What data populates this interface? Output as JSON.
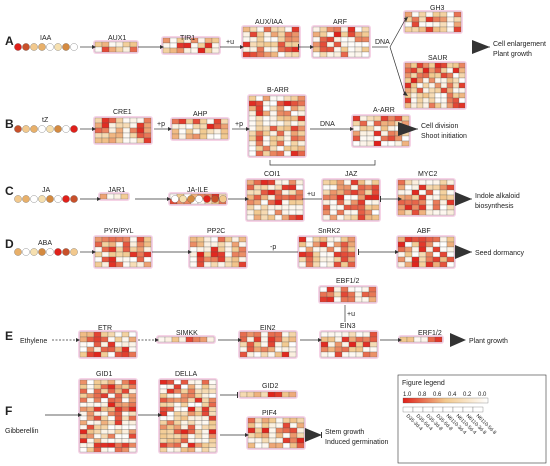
{
  "rows": [
    {
      "letter": "A",
      "signal": "IAA",
      "genes": [
        "AUX1",
        "TIR1",
        "AUX/IAA",
        "ARF",
        "GH3",
        "SAUR"
      ],
      "signs": [
        "+u",
        "DNA"
      ],
      "outcome": [
        "Cell enlargement",
        "Plant growth"
      ]
    },
    {
      "letter": "B",
      "signal": "tZ",
      "genes": [
        "CRE1",
        "AHP",
        "B-ARR",
        "A-ARR"
      ],
      "signs": [
        "+p",
        "+p",
        "DNA"
      ],
      "outcome": [
        "Cell division",
        "Shoot initiation"
      ]
    },
    {
      "letter": "C",
      "signal": "JA",
      "genes": [
        "JAR1",
        "JA-ILE",
        "COI1",
        "JAZ",
        "MYC2"
      ],
      "signs": [
        "+u"
      ],
      "outcome": [
        "Indole alkaloid",
        "biosynthesis"
      ]
    },
    {
      "letter": "D",
      "signal": "ABA",
      "genes": [
        "PYR/PYL",
        "PP2C",
        "SnRK2",
        "ABF"
      ],
      "signs": [
        "-p"
      ],
      "outcome": [
        "Seed dormancy"
      ]
    },
    {
      "letter": "E",
      "signal": "Ethylene",
      "genes": [
        "ETR",
        "SIMKK",
        "EIN2",
        "EBF1/2",
        "EIN3",
        "ERF1/2"
      ],
      "signs": [
        "+u"
      ],
      "outcome": [
        "Plant growth"
      ]
    },
    {
      "letter": "F",
      "signal": "Gibberellin",
      "genes": [
        "GID1",
        "DELLA",
        "GID2",
        "PIF4"
      ],
      "signs": [],
      "outcome": [
        "Stem growth",
        "Induced germination"
      ]
    }
  ],
  "legend": {
    "title": "Figure legend",
    "ticks": [
      "1.0",
      "0.8",
      "0.6",
      "0.4",
      "0.2",
      "0.0"
    ],
    "samples": [
      "D35-3d-4",
      "D35-5d-4",
      "D35-3d-8",
      "D35-5d-8",
      "N6110-3d-4",
      "N6110-5d-4",
      "N6110-3d-8",
      "N6110-5d-8"
    ],
    "color_high": "#e0201a",
    "color_mid": "#f2c98e",
    "color_low": "#ffffff"
  }
}
